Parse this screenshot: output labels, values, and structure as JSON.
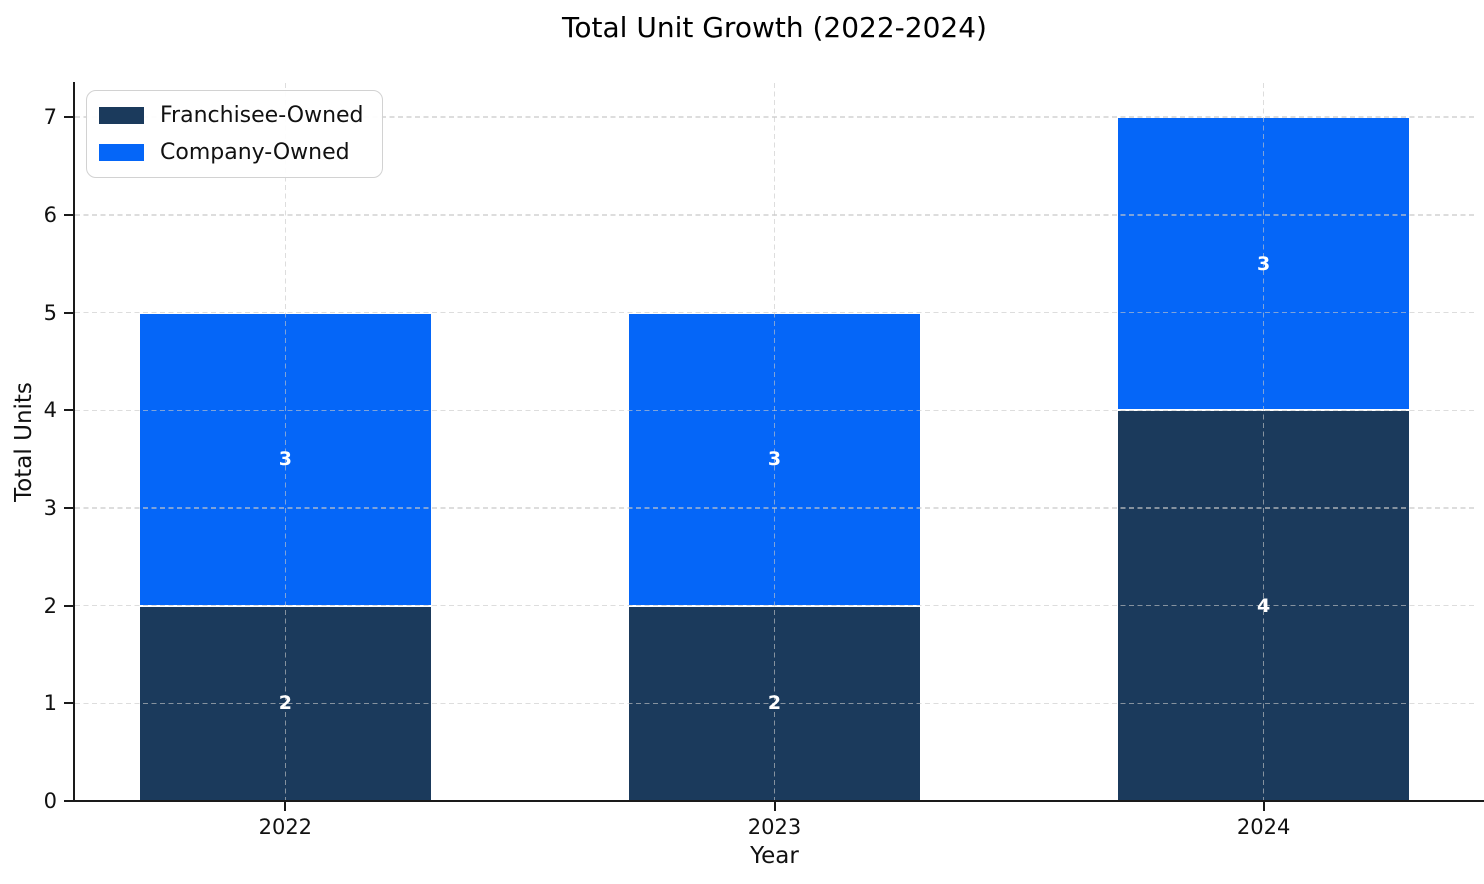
{
  "chart_data": {
    "type": "bar",
    "stacked": true,
    "title": "Total Unit Growth (2022-2024)",
    "xlabel": "Year",
    "ylabel": "Total Units",
    "categories": [
      "2022",
      "2023",
      "2024"
    ],
    "series": [
      {
        "name": "Franchisee-Owned",
        "color": "#1B3A5C",
        "values": [
          2,
          2,
          4
        ]
      },
      {
        "name": "Company-Owned",
        "color": "#0566F8",
        "values": [
          3,
          3,
          3
        ]
      }
    ],
    "totals": [
      5,
      5,
      7
    ],
    "segment_labels": [
      [
        "2",
        "2",
        "4"
      ],
      [
        "3",
        "3",
        "3"
      ]
    ],
    "bar_label_color": "#ffffff",
    "ylim": [
      0,
      7.35
    ],
    "yticks": [
      0,
      1,
      2,
      3,
      4,
      5,
      6,
      7
    ],
    "grid": {
      "horizontal": true,
      "vertical": true,
      "style": "dashed",
      "color": "#d9d9d9"
    },
    "legend_position": "upper-left",
    "spine_color": "#1a1a1a"
  }
}
